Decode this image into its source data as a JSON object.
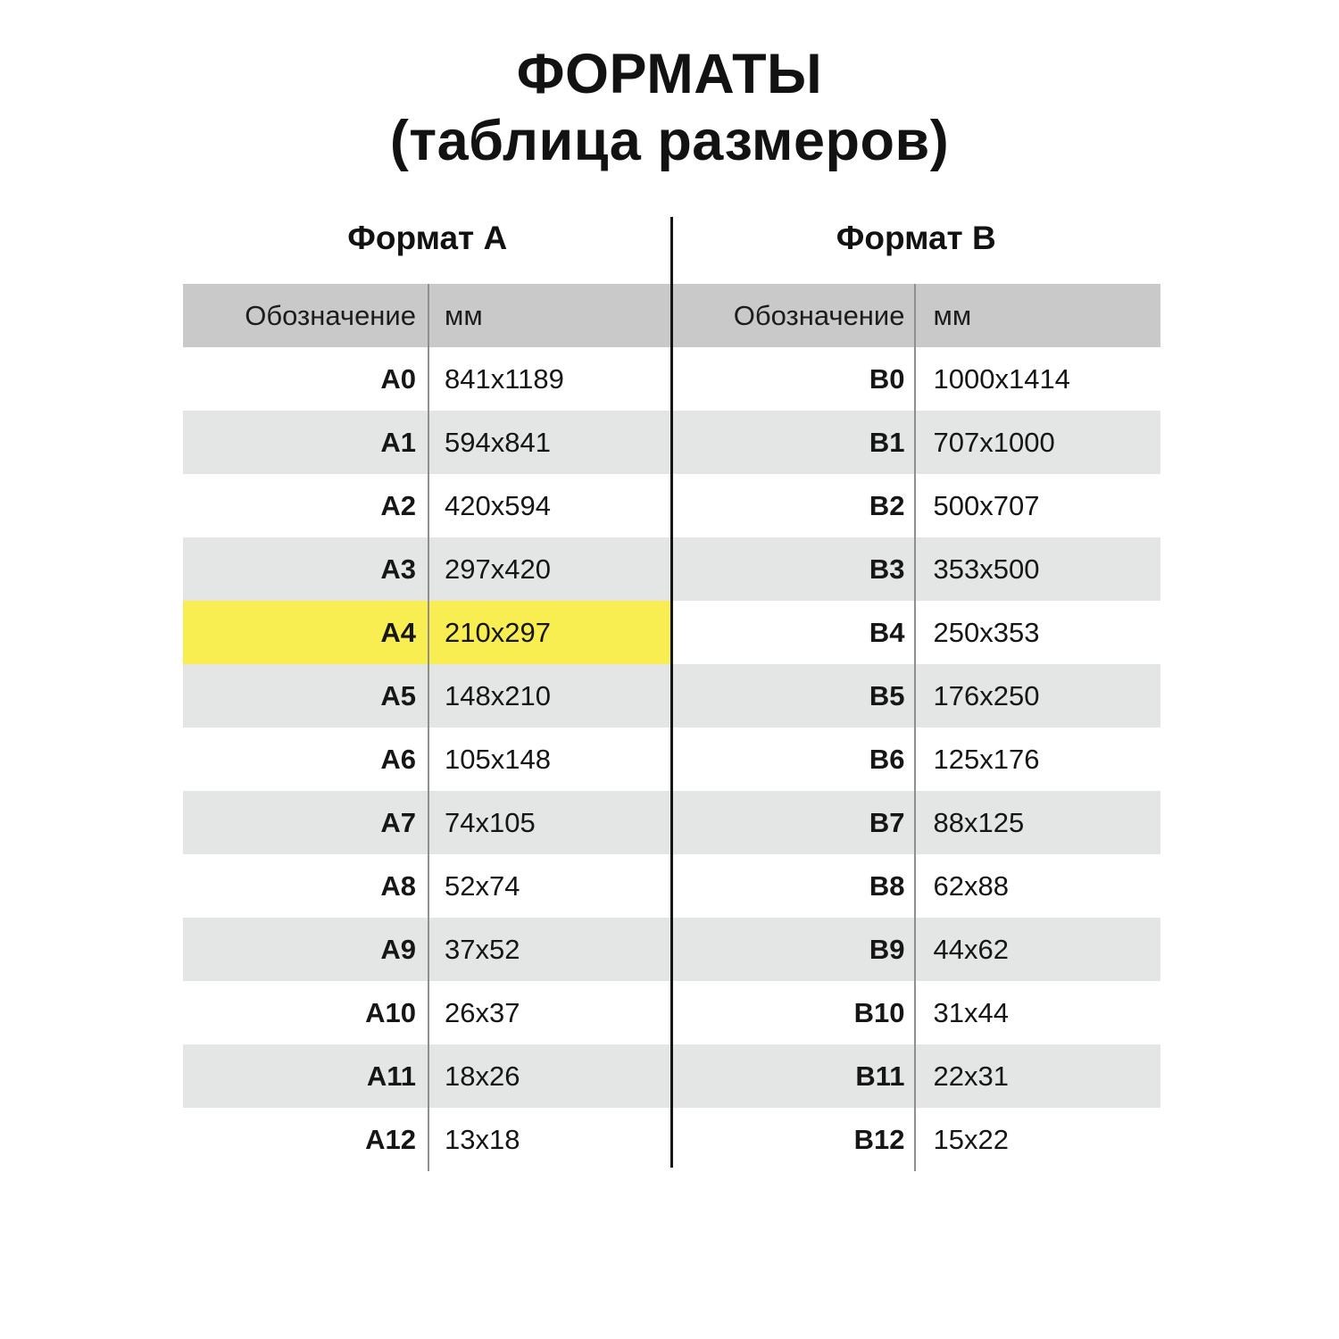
{
  "title": {
    "line1": "ФОРМАТЫ",
    "line2": "(таблица размеров)"
  },
  "colors": {
    "header_bg": "#c9c9c9",
    "row_alt_bg": "#e4e6e6",
    "highlight_bg": "#f9ee51",
    "divider_black": "#151515",
    "divider_gray": "#8f8f8f"
  },
  "chart_data": [
    {
      "type": "table",
      "name": "Формат А",
      "columns": {
        "designation": "Обозначение",
        "mm": "мм"
      },
      "rows": [
        {
          "designation": "A0",
          "mm": "841x1189",
          "highlight": false
        },
        {
          "designation": "A1",
          "mm": "594x841",
          "highlight": false
        },
        {
          "designation": "A2",
          "mm": "420x594",
          "highlight": false
        },
        {
          "designation": "A3",
          "mm": "297x420",
          "highlight": false
        },
        {
          "designation": "A4",
          "mm": "210x297",
          "highlight": true
        },
        {
          "designation": "A5",
          "mm": "148x210",
          "highlight": false
        },
        {
          "designation": "A6",
          "mm": "105x148",
          "highlight": false
        },
        {
          "designation": "A7",
          "mm": "74x105",
          "highlight": false
        },
        {
          "designation": "A8",
          "mm": "52x74",
          "highlight": false
        },
        {
          "designation": "A9",
          "mm": "37x52",
          "highlight": false
        },
        {
          "designation": "A10",
          "mm": "26x37",
          "highlight": false
        },
        {
          "designation": "A11",
          "mm": "18x26",
          "highlight": false
        },
        {
          "designation": "A12",
          "mm": "13x18",
          "highlight": false
        }
      ]
    },
    {
      "type": "table",
      "name": "Формат B",
      "columns": {
        "designation": "Обозначение",
        "mm": "мм"
      },
      "rows": [
        {
          "designation": "B0",
          "mm": "1000x1414",
          "highlight": false
        },
        {
          "designation": "B1",
          "mm": "707x1000",
          "highlight": false
        },
        {
          "designation": "B2",
          "mm": "500x707",
          "highlight": false
        },
        {
          "designation": "B3",
          "mm": "353x500",
          "highlight": false
        },
        {
          "designation": "B4",
          "mm": "250x353",
          "highlight": false
        },
        {
          "designation": "B5",
          "mm": "176x250",
          "highlight": false
        },
        {
          "designation": "B6",
          "mm": "125x176",
          "highlight": false
        },
        {
          "designation": "B7",
          "mm": "88x125",
          "highlight": false
        },
        {
          "designation": "B8",
          "mm": "62x88",
          "highlight": false
        },
        {
          "designation": "B9",
          "mm": "44x62",
          "highlight": false
        },
        {
          "designation": "B10",
          "mm": "31x44",
          "highlight": false
        },
        {
          "designation": "B11",
          "mm": "22x31",
          "highlight": false
        },
        {
          "designation": "B12",
          "mm": "15x22",
          "highlight": false
        }
      ]
    }
  ]
}
